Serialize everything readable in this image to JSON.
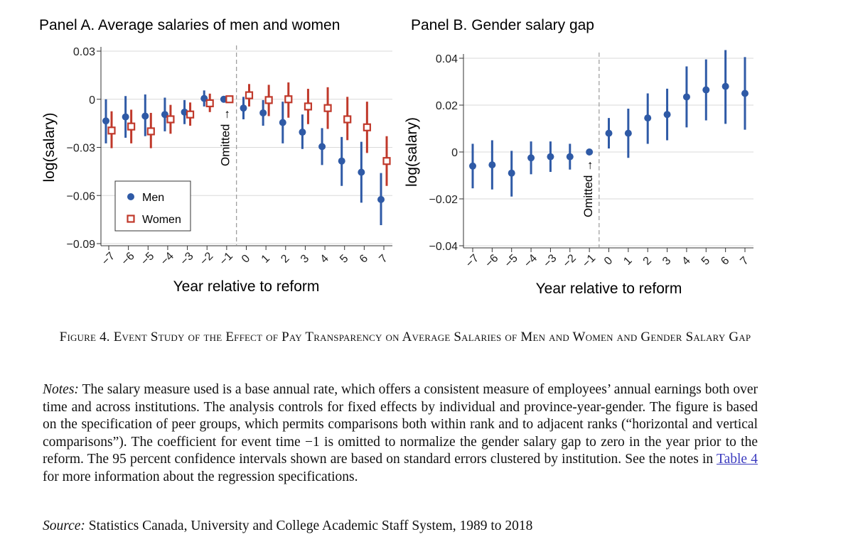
{
  "chart_data": [
    {
      "type": "scatter",
      "title": "Panel A. Average salaries of men and women",
      "xlabel": "Year relative to reform",
      "ylabel": "log(salary)",
      "categories": [
        "−7",
        "−6",
        "−5",
        "−4",
        "−3",
        "−2",
        "−1",
        "0",
        "1",
        "2",
        "3",
        "4",
        "5",
        "6",
        "7"
      ],
      "x": [
        -7,
        -6,
        -5,
        -4,
        -3,
        -2,
        -1,
        0,
        1,
        2,
        3,
        4,
        5,
        6,
        7
      ],
      "ylim": [
        -0.09,
        0.03
      ],
      "yticks": [
        0.03,
        0,
        -0.03,
        -0.06,
        -0.09
      ],
      "ytick_labels": [
        "0.03",
        "0",
        "−0.03",
        "−0.06",
        "−0.09"
      ],
      "grid": true,
      "legend_position": "bottom-left",
      "omitted_label": "Omitted",
      "omitted_arrow": "→",
      "series": [
        {
          "name": "Men",
          "marker": "circle",
          "color": "#2f5aa6",
          "values": [
            -0.0135,
            -0.011,
            -0.0105,
            -0.0095,
            -0.008,
            0.0005,
            0.0,
            -0.0055,
            -0.0085,
            -0.0145,
            -0.0205,
            -0.0295,
            -0.0385,
            -0.0455,
            -0.0625
          ],
          "ci_low": [
            -0.0275,
            -0.024,
            -0.023,
            -0.02,
            -0.0155,
            -0.0045,
            0.0,
            -0.0125,
            -0.0165,
            -0.0275,
            -0.031,
            -0.041,
            -0.054,
            -0.0645,
            -0.0785
          ],
          "ci_high": [
            0.0,
            0.002,
            0.003,
            0.001,
            -0.0005,
            0.0055,
            0.0,
            0.0015,
            -0.0005,
            -0.0015,
            -0.0095,
            -0.018,
            -0.0235,
            -0.0265,
            -0.046
          ]
        },
        {
          "name": "Women",
          "marker": "square",
          "color": "#c0392b",
          "values": [
            -0.0195,
            -0.017,
            -0.02,
            -0.0125,
            -0.0095,
            -0.0025,
            0.0,
            0.0025,
            -0.0005,
            0.0,
            -0.0045,
            -0.0055,
            -0.0125,
            -0.0175,
            -0.0385
          ],
          "ci_low": [
            -0.0305,
            -0.0275,
            -0.0305,
            -0.0215,
            -0.0165,
            -0.008,
            0.0,
            -0.0045,
            -0.0105,
            -0.0115,
            -0.0155,
            -0.0185,
            -0.0255,
            -0.0335,
            -0.054
          ],
          "ci_high": [
            -0.0075,
            -0.0065,
            -0.0085,
            -0.0035,
            -0.002,
            0.0035,
            0.0,
            0.0095,
            0.009,
            0.0105,
            0.0065,
            0.0075,
            0.0015,
            -0.0015,
            -0.023
          ]
        }
      ]
    },
    {
      "type": "scatter",
      "title": "Panel B. Gender salary gap",
      "xlabel": "Year relative to reform",
      "ylabel": "log(salary)",
      "categories": [
        "−7",
        "−6",
        "−5",
        "−4",
        "−3",
        "−2",
        "−1",
        "0",
        "1",
        "2",
        "3",
        "4",
        "5",
        "6",
        "7"
      ],
      "x": [
        -7,
        -6,
        -5,
        -4,
        -3,
        -2,
        -1,
        0,
        1,
        2,
        3,
        4,
        5,
        6,
        7
      ],
      "ylim": [
        -0.04,
        0.04
      ],
      "yticks": [
        0.04,
        0.02,
        0,
        -0.02,
        -0.04
      ],
      "ytick_labels": [
        "0.04",
        "0.02",
        "0",
        "−0.02",
        "−0.04"
      ],
      "grid": true,
      "omitted_label": "Omitted",
      "omitted_arrow": "→",
      "series": [
        {
          "marker": "circle",
          "color": "#2f5aa6",
          "values": [
            -0.006,
            -0.0055,
            -0.009,
            -0.0025,
            -0.002,
            -0.002,
            0.0,
            0.008,
            0.008,
            0.0145,
            0.016,
            0.0235,
            0.0265,
            0.028,
            0.025
          ],
          "ci_low": [
            -0.0155,
            -0.016,
            -0.019,
            -0.0095,
            -0.0085,
            -0.0075,
            0.0,
            0.0015,
            -0.0025,
            0.0035,
            0.005,
            0.0105,
            0.0135,
            0.012,
            0.0095
          ],
          "ci_high": [
            0.0035,
            0.005,
            0.0005,
            0.0045,
            0.0045,
            0.0035,
            0.0,
            0.0145,
            0.0185,
            0.025,
            0.027,
            0.0365,
            0.0395,
            0.0435,
            0.0405
          ]
        }
      ]
    }
  ],
  "caption": "Figure 4. Event Study of the Effect of Pay Transparency on Average Salaries of Men and Women and Gender Salary Gap",
  "notes": {
    "label": "Notes:",
    "text_before_link": " The salary measure used is a base annual rate, which offers a consistent measure of employees’ annual earnings both over time and across institutions. The analysis controls for fixed effects by individual and province-year-gender. The figure is based on the specification of peer groups, which permits comparisons both within rank and to adjacent ranks (“horizontal and vertical comparisons”). The coefficient for event time −1 is omitted to normalize the gender salary gap to zero in the year prior to the reform. The 95 percent confidence intervals shown are based on standard errors clustered by institution. See the notes in ",
    "link_text": "Table 4",
    "text_after_link": " for more information about the regression specifications."
  },
  "source": {
    "label": "Source:",
    "text": " Statistics Canada, University and College Academic Staff System, 1989 to 2018"
  }
}
